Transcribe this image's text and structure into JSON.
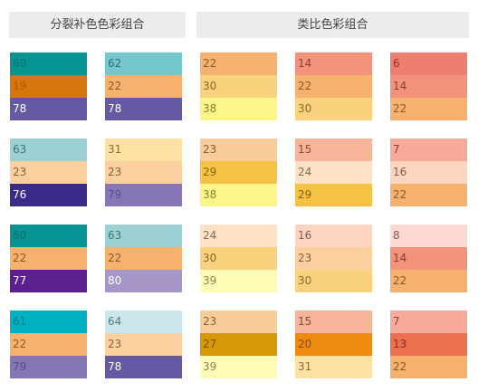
{
  "headers": {
    "left": "分裂补色色彩组合",
    "right": "类比色彩组合"
  },
  "palettes": [
    [
      {
        "number": "60",
        "color": "#079593",
        "text_color": "#0d6f6d"
      },
      {
        "number": "19",
        "color": "#d4760c",
        "text_color": "#b05a00"
      },
      {
        "number": "78",
        "color": "#645aa3",
        "text_color": "#ffffff"
      }
    ],
    [
      {
        "number": "62",
        "color": "#74c7ca",
        "text_color": "#2f6e71"
      },
      {
        "number": "22",
        "color": "#f6b16e",
        "text_color": "#8a5a2a"
      },
      {
        "number": "78",
        "color": "#645aa3",
        "text_color": "#ffffff"
      }
    ],
    [
      {
        "number": "22",
        "color": "#f6b16e",
        "text_color": "#8a5a2a"
      },
      {
        "number": "30",
        "color": "#fad27e",
        "text_color": "#8a6a2a"
      },
      {
        "number": "38",
        "color": "#fdf58a",
        "text_color": "#8a8430"
      }
    ],
    [
      {
        "number": "14",
        "color": "#f3927a",
        "text_color": "#8a4030"
      },
      {
        "number": "22",
        "color": "#f6b16e",
        "text_color": "#8a5a2a"
      },
      {
        "number": "30",
        "color": "#fad27e",
        "text_color": "#8a6a2a"
      }
    ],
    [
      {
        "number": "6",
        "color": "#f07e70",
        "text_color": "#8a3528"
      },
      {
        "number": "14",
        "color": "#f3927a",
        "text_color": "#8a4030"
      },
      {
        "number": "22",
        "color": "#f6b16e",
        "text_color": "#8a5a2a"
      }
    ],
    [
      {
        "number": "63",
        "color": "#9bd1d3",
        "text_color": "#3f7476"
      },
      {
        "number": "23",
        "color": "#fbd09e",
        "text_color": "#8a6030"
      },
      {
        "number": "76",
        "color": "#3a2c8a",
        "text_color": "#ffffff"
      }
    ],
    [
      {
        "number": "31",
        "color": "#fce2a2",
        "text_color": "#8a7040"
      },
      {
        "number": "23",
        "color": "#fbd09e",
        "text_color": "#8a6030"
      },
      {
        "number": "79",
        "color": "#8676b5",
        "text_color": "#5a4c8a"
      }
    ],
    [
      {
        "number": "23",
        "color": "#fbcc9b",
        "text_color": "#8a6030"
      },
      {
        "number": "29",
        "color": "#f5c244",
        "text_color": "#8a6410"
      },
      {
        "number": "38",
        "color": "#fdf58a",
        "text_color": "#8a8430"
      }
    ],
    [
      {
        "number": "15",
        "color": "#f8b49b",
        "text_color": "#8a4a35"
      },
      {
        "number": "24",
        "color": "#fde2c8",
        "text_color": "#8a6a50"
      },
      {
        "number": "29",
        "color": "#f5c244",
        "text_color": "#8a6410"
      }
    ],
    [
      {
        "number": "7",
        "color": "#f7a99a",
        "text_color": "#8a4538"
      },
      {
        "number": "16",
        "color": "#fcd5c0",
        "text_color": "#8a5c48"
      },
      {
        "number": "22",
        "color": "#f6b16e",
        "text_color": "#8a5a2a"
      }
    ],
    [
      {
        "number": "60",
        "color": "#079593",
        "text_color": "#0d6f6d"
      },
      {
        "number": "22",
        "color": "#f6b16e",
        "text_color": "#8a5a2a"
      },
      {
        "number": "77",
        "color": "#5b1f8f",
        "text_color": "#ffffff"
      }
    ],
    [
      {
        "number": "63",
        "color": "#9bd1d3",
        "text_color": "#3f7476"
      },
      {
        "number": "22",
        "color": "#f6b16e",
        "text_color": "#8a5a2a"
      },
      {
        "number": "80",
        "color": "#a596c7",
        "text_color": "#ffffff"
      }
    ],
    [
      {
        "number": "24",
        "color": "#fde2c8",
        "text_color": "#8a6a50"
      },
      {
        "number": "30",
        "color": "#fad27e",
        "text_color": "#8a6a2a"
      },
      {
        "number": "39",
        "color": "#fefbb7",
        "text_color": "#8a8650"
      }
    ],
    [
      {
        "number": "16",
        "color": "#fcd5c0",
        "text_color": "#8a5c48"
      },
      {
        "number": "23",
        "color": "#fbd09e",
        "text_color": "#8a6030"
      },
      {
        "number": "30",
        "color": "#fad27e",
        "text_color": "#8a6a2a"
      }
    ],
    [
      {
        "number": "8",
        "color": "#fcd9d3",
        "text_color": "#8a5a52"
      },
      {
        "number": "14",
        "color": "#f3927a",
        "text_color": "#8a4030"
      },
      {
        "number": "22",
        "color": "#f6b16e",
        "text_color": "#8a5a2a"
      }
    ],
    [
      {
        "number": "61",
        "color": "#00b1c0",
        "text_color": "#0a7a86"
      },
      {
        "number": "22",
        "color": "#f6b16e",
        "text_color": "#8a5a2a"
      },
      {
        "number": "79",
        "color": "#8676b5",
        "text_color": "#5a4c8a"
      }
    ],
    [
      {
        "number": "64",
        "color": "#cce7ea",
        "text_color": "#4f7a7e"
      },
      {
        "number": "23",
        "color": "#fbd09e",
        "text_color": "#8a6030"
      },
      {
        "number": "78",
        "color": "#645aa3",
        "text_color": "#ffffff"
      }
    ],
    [
      {
        "number": "23",
        "color": "#fbcc9b",
        "text_color": "#8a6030"
      },
      {
        "number": "27",
        "color": "#d7990a",
        "text_color": "#7a5400"
      },
      {
        "number": "39",
        "color": "#fefbb7",
        "text_color": "#8a8650"
      }
    ],
    [
      {
        "number": "15",
        "color": "#f8b49b",
        "text_color": "#8a4a35"
      },
      {
        "number": "20",
        "color": "#ef8a10",
        "text_color": "#8a4a00"
      },
      {
        "number": "31",
        "color": "#fce2a2",
        "text_color": "#8a7040"
      }
    ],
    [
      {
        "number": "7",
        "color": "#f7a99a",
        "text_color": "#8a4538"
      },
      {
        "number": "13",
        "color": "#ec6f50",
        "text_color": "#8a3020"
      },
      {
        "number": "22",
        "color": "#f6b16e",
        "text_color": "#8a5a2a"
      }
    ]
  ]
}
